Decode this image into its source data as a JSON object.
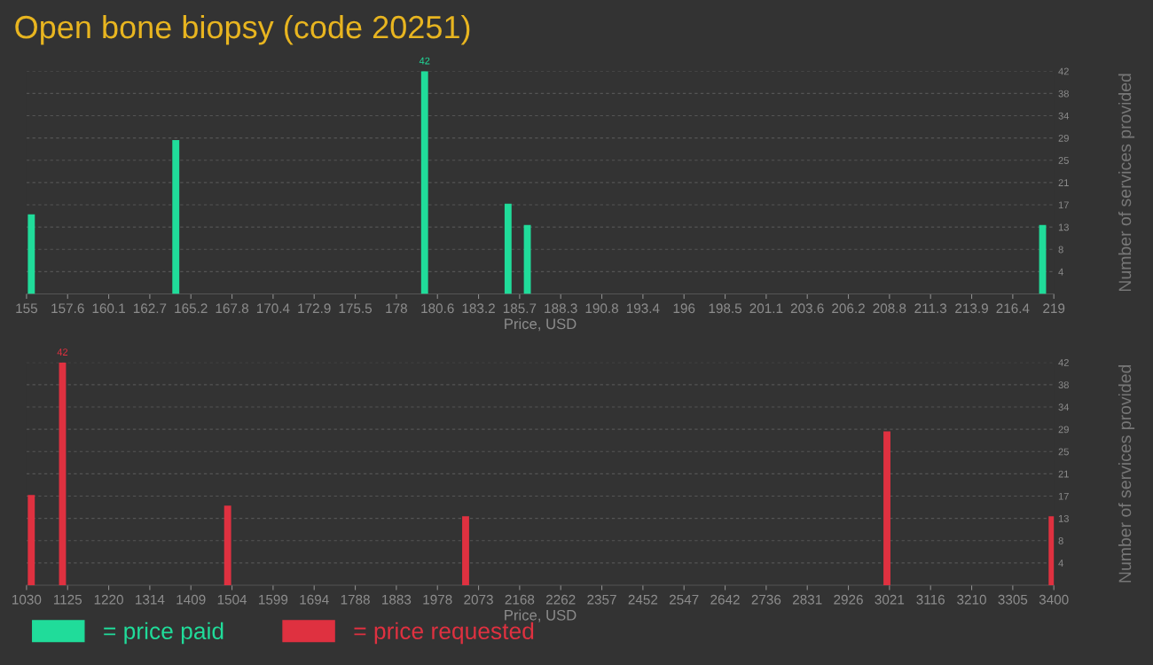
{
  "chart_data": [
    {
      "type": "bar",
      "title": "Open bone biopsy (code 20251)",
      "xlabel": "Price, USD",
      "ylabel": "Number of services provided",
      "x": [
        155.3,
        164.3,
        179.8,
        185.0,
        186.2,
        218.3
      ],
      "series": [
        {
          "name": "= price paid",
          "color": "#20dc9a",
          "values": [
            15,
            29,
            42,
            17,
            13,
            13
          ],
          "value_labels": [
            null,
            null,
            "42",
            null,
            null,
            null
          ]
        }
      ],
      "xlim": [
        155,
        219
      ],
      "xticks": [
        155,
        {
          "value": 157.56,
          "label": "157.6"
        },
        {
          "value": 160.12,
          "label": "160.1"
        },
        {
          "value": 162.68,
          "label": "162.7"
        },
        {
          "value": 165.24,
          "label": "165.2"
        },
        167.8,
        {
          "value": 170.36,
          "label": "170.4"
        },
        {
          "value": 172.92,
          "label": "172.9"
        },
        {
          "value": 175.48,
          "label": "175.5"
        },
        {
          "value": 178.04,
          "label": "178"
        },
        180.6,
        {
          "value": 183.16,
          "label": "183.2"
        },
        {
          "value": 185.72,
          "label": "185.7"
        },
        {
          "value": 188.28,
          "label": "188.3"
        },
        {
          "value": 190.84,
          "label": "190.8"
        },
        193.4,
        {
          "value": 195.96,
          "label": "196"
        },
        {
          "value": 198.52,
          "label": "198.5"
        },
        {
          "value": 201.08,
          "label": "201.1"
        },
        {
          "value": 203.64,
          "label": "203.6"
        },
        206.2,
        {
          "value": 208.76,
          "label": "208.8"
        },
        {
          "value": 211.32,
          "label": "211.3"
        },
        {
          "value": 213.88,
          "label": "213.9"
        },
        {
          "value": 216.44,
          "label": "216.4"
        },
        219
      ],
      "ylim": [
        0,
        42
      ],
      "yticks": [
        {
          "value": 4.2,
          "label": "4"
        },
        {
          "value": 8.4,
          "label": "8"
        },
        {
          "value": 12.6,
          "label": "13"
        },
        {
          "value": 16.8,
          "label": "17"
        },
        21,
        {
          "value": 25.2,
          "label": "25"
        },
        {
          "value": 29.4,
          "label": "29"
        },
        {
          "value": 33.6,
          "label": "34"
        },
        {
          "value": 37.8,
          "label": "38"
        },
        42
      ],
      "grid": "y",
      "legend": "bottom left"
    },
    {
      "type": "bar",
      "xlabel": "Price, USD",
      "ylabel": "Number of services provided",
      "x": [
        1041,
        1113,
        1494,
        2043,
        3015,
        3396
      ],
      "series": [
        {
          "name": "= price requested",
          "color": "#df3140",
          "values": [
            17,
            42,
            15,
            13,
            29,
            13
          ],
          "value_labels": [
            null,
            "42",
            null,
            null,
            null,
            null
          ]
        }
      ],
      "xlim": [
        1030,
        3400
      ],
      "xticks": [
        1030,
        {
          "value": 1124.8,
          "label": "1125"
        },
        {
          "value": 1219.6,
          "label": "1220"
        },
        {
          "value": 1314.4,
          "label": "1314"
        },
        {
          "value": 1409.2,
          "label": "1409"
        },
        1504,
        {
          "value": 1598.8,
          "label": "1599"
        },
        {
          "value": 1693.6,
          "label": "1694"
        },
        {
          "value": 1788.4,
          "label": "1788"
        },
        {
          "value": 1883.2,
          "label": "1883"
        },
        1978,
        {
          "value": 2072.8,
          "label": "2073"
        },
        {
          "value": 2167.6,
          "label": "2168"
        },
        {
          "value": 2262.4,
          "label": "2262"
        },
        {
          "value": 2357.2,
          "label": "2357"
        },
        2452,
        {
          "value": 2546.8,
          "label": "2547"
        },
        {
          "value": 2641.6,
          "label": "2642"
        },
        {
          "value": 2736.4,
          "label": "2736"
        },
        {
          "value": 2831.2,
          "label": "2831"
        },
        2926,
        {
          "value": 3020.8,
          "label": "3021"
        },
        {
          "value": 3115.6,
          "label": "3116"
        },
        {
          "value": 3210.4,
          "label": "3210"
        },
        {
          "value": 3305.2,
          "label": "3305"
        },
        3400
      ],
      "ylim": [
        0,
        42
      ],
      "yticks": [
        {
          "value": 4.2,
          "label": "4"
        },
        {
          "value": 8.4,
          "label": "8"
        },
        {
          "value": 12.6,
          "label": "13"
        },
        {
          "value": 16.8,
          "label": "17"
        },
        21,
        {
          "value": 25.2,
          "label": "25"
        },
        {
          "value": 29.4,
          "label": "29"
        },
        {
          "value": 33.6,
          "label": "34"
        },
        {
          "value": 37.8,
          "label": "38"
        },
        42
      ],
      "grid": "y",
      "legend": "bottom left"
    }
  ]
}
